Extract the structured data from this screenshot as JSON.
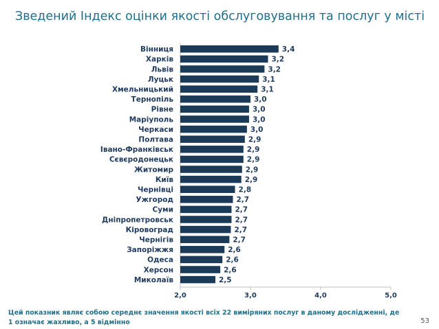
{
  "title": "Зведений Індекс оцінки якості обслуговування та послуг у місті",
  "footnote": "Цей показник являє собою середнє значення якості всіх 22 виміряних послуг в даному дослідженні, де 1 означає жахливо, а 5 відмінно",
  "page_number": "53",
  "colors": {
    "bar": "#1b3a57",
    "text": "#1f3a5f",
    "title": "#1f6f8b",
    "axis": "#bfbfbf"
  },
  "chart_data": {
    "type": "bar",
    "orientation": "horizontal",
    "categories": [
      "Вінниця",
      "Харків",
      "Львів",
      "Луцьк",
      "Хмельницький",
      "Тернопіль",
      "Рівне",
      "Маріуполь",
      "Черкаси",
      "Полтава",
      "Івано-Франківськ",
      "Сєвєродонецьк",
      "Житомир",
      "Київ",
      "Чернівці",
      "Ужгород",
      "Суми",
      "Дніпропетровськ",
      "Кіровоград",
      "Чернігів",
      "Запоріжжя",
      "Одеса",
      "Херсон",
      "Миколаїв"
    ],
    "values": [
      3.4,
      3.25,
      3.2,
      3.12,
      3.1,
      3.0,
      2.98,
      2.98,
      2.95,
      2.92,
      2.9,
      2.9,
      2.88,
      2.87,
      2.78,
      2.75,
      2.73,
      2.73,
      2.72,
      2.7,
      2.63,
      2.6,
      2.57,
      2.5
    ],
    "value_labels": [
      "3,4",
      "3,2",
      "3,2",
      "3,1",
      "3,1",
      "3,0",
      "3,0",
      "3,0",
      "3,0",
      "2,9",
      "2,9",
      "2,9",
      "2,9",
      "2,9",
      "2,8",
      "2,7",
      "2,7",
      "2,7",
      "2,7",
      "2,7",
      "2,6",
      "2,6",
      "2,6",
      "2,5"
    ],
    "xlim": [
      2.0,
      5.0
    ],
    "xticks": [
      2.0,
      3.0,
      4.0,
      5.0
    ],
    "xtick_labels": [
      "2,0",
      "3,0",
      "4,0",
      "5,0"
    ],
    "grid": false,
    "legend": "none"
  }
}
